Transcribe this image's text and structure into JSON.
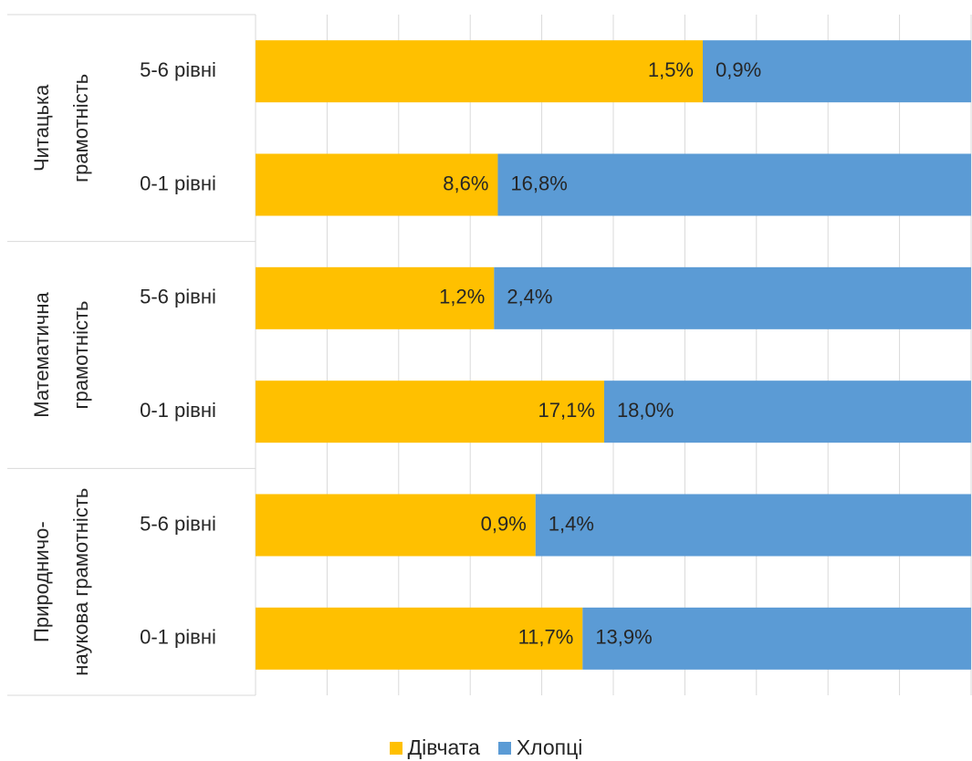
{
  "chart_data": {
    "type": "bar",
    "orientation": "horizontal",
    "stacked": "percent",
    "groups": [
      {
        "label": "Читацька грамотність",
        "lines": [
          "Читацька",
          "грамотність"
        ]
      },
      {
        "label": "Математична грамотність",
        "lines": [
          "Математична",
          "грамотність"
        ]
      },
      {
        "label": "Природничо-наукова грамотність",
        "lines": [
          "Природничо-",
          "наукова грамотність"
        ]
      }
    ],
    "categories": [
      {
        "group": 0,
        "label": "5-6 рівні"
      },
      {
        "group": 0,
        "label": "0-1 рівні"
      },
      {
        "group": 1,
        "label": "5-6 рівні"
      },
      {
        "group": 1,
        "label": "0-1 рівні"
      },
      {
        "group": 2,
        "label": "5-6 рівні"
      },
      {
        "group": 2,
        "label": "0-1 рівні"
      }
    ],
    "series": [
      {
        "name": "Дівчата",
        "color": "#FFC000",
        "values": [
          1.5,
          8.6,
          1.2,
          17.1,
          0.9,
          11.7
        ],
        "labels": [
          "1,5%",
          "8,6%",
          "1,2%",
          "17,1%",
          "0,9%",
          "11,7%"
        ]
      },
      {
        "name": "Хлопці",
        "color": "#5B9BD5",
        "values": [
          0.9,
          16.8,
          2.4,
          18.0,
          1.4,
          13.9
        ],
        "labels": [
          "0,9%",
          "16,8%",
          "2,4%",
          "18,0%",
          "1,4%",
          "13,9%"
        ]
      }
    ],
    "xlim": [
      0,
      100
    ],
    "grid": true,
    "legend": "bottom"
  }
}
